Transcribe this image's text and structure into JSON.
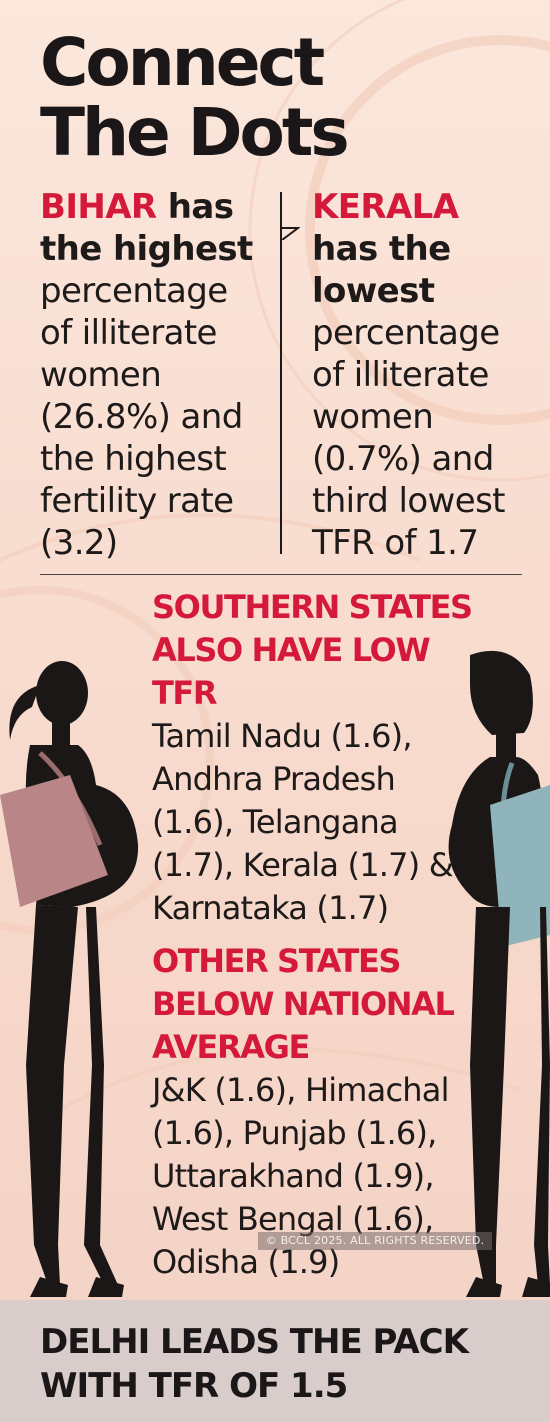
{
  "title": {
    "line1": "Connect",
    "line2": "The Dots"
  },
  "left_panel": {
    "state": "BIHAR",
    "after_state": " has",
    "bold_line": "the highest",
    "body": "percentage of illiterate women (26.8%) and the highest fertility rate (3.2)"
  },
  "right_panel": {
    "state": "KERALA",
    "bold_line1": "has the",
    "bold_line2": "lowest",
    "body": "percentage of illiterate women (0.7%) and third lowest TFR of 1.7"
  },
  "southern": {
    "heading": "SOUTHERN STATES ALSO HAVE LOW TFR",
    "body": "Tamil Nadu (1.6), Andhra Pradesh (1.6), Telangana (1.7), Kerala (1.7) & Karnataka (1.7)"
  },
  "other_states": {
    "heading": "OTHER STATES BELOW NATIONAL AVERAGE",
    "body": "J&K (1.6), Himachal (1.6), Punjab (1.6), Uttarakhand (1.9), West Bengal (1.6), Odisha (1.9)"
  },
  "copyright": "© BCCL 2025. ALL RIGHTS RESERVED.",
  "footer": {
    "text": "DELHI LEADS THE PACK WITH TFR OF 1.5"
  },
  "colors": {
    "accent_red": "#d4193a",
    "text_dark": "#1e1a1a",
    "background": "#f8ddd0",
    "left_bag": "#b98586",
    "right_bag": "#8fb4bb",
    "footer_band": "#d9cdcc"
  },
  "icons": {
    "left_figure": "pregnant-woman-silhouette-icon",
    "right_figure": "pregnant-woman-silhouette-icon"
  }
}
